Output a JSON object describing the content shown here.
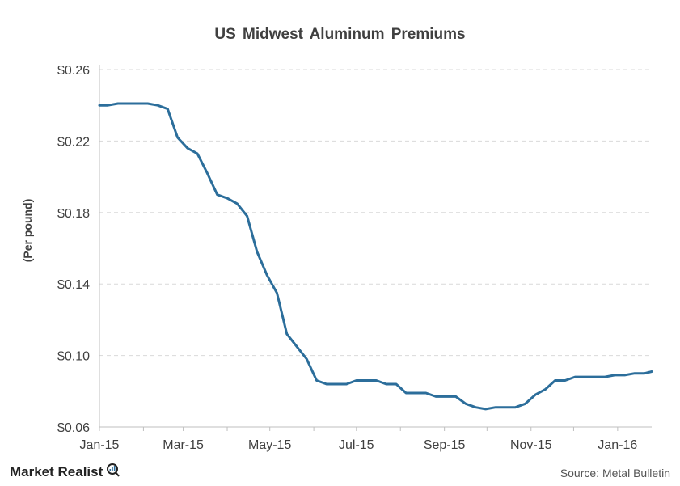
{
  "chart_data": {
    "type": "line",
    "title": "US Midwest Aluminum Premiums",
    "ylabel": "(Per pound)",
    "xlabel": "",
    "ylim": [
      0.06,
      0.26
    ],
    "yticks": [
      "$0.26",
      "$0.22",
      "$0.18",
      "$0.14",
      "$0.10",
      "$0.06"
    ],
    "ytick_values": [
      0.26,
      0.22,
      0.18,
      0.14,
      0.1,
      0.06
    ],
    "xticks": [
      "Jan-15",
      "Mar-15",
      "May-15",
      "Jul-15",
      "Sep-15",
      "Nov-15",
      "Jan-16"
    ],
    "xlim": [
      "2015-01-01",
      "2016-01-25"
    ],
    "grid": true,
    "series": [
      {
        "color": "#2c6e9b",
        "x": [
          "2015-01-01",
          "2015-01-07",
          "2015-01-14",
          "2015-01-21",
          "2015-01-28",
          "2015-02-04",
          "2015-02-11",
          "2015-02-18",
          "2015-02-25",
          "2015-03-04",
          "2015-03-11",
          "2015-03-18",
          "2015-03-25",
          "2015-04-01",
          "2015-04-08",
          "2015-04-15",
          "2015-04-22",
          "2015-04-29",
          "2015-05-06",
          "2015-05-13",
          "2015-05-20",
          "2015-05-27",
          "2015-06-03",
          "2015-06-10",
          "2015-06-17",
          "2015-06-24",
          "2015-07-01",
          "2015-07-08",
          "2015-07-15",
          "2015-07-22",
          "2015-07-29",
          "2015-08-05",
          "2015-08-12",
          "2015-08-19",
          "2015-08-26",
          "2015-09-02",
          "2015-09-09",
          "2015-09-16",
          "2015-09-23",
          "2015-09-30",
          "2015-10-07",
          "2015-10-14",
          "2015-10-21",
          "2015-10-28",
          "2015-11-04",
          "2015-11-11",
          "2015-11-18",
          "2015-11-25",
          "2015-12-02",
          "2015-12-09",
          "2015-12-16",
          "2015-12-23",
          "2015-12-30",
          "2016-01-06",
          "2016-01-13",
          "2016-01-20",
          "2016-01-25"
        ],
        "values": [
          0.24,
          0.24,
          0.241,
          0.241,
          0.241,
          0.241,
          0.24,
          0.238,
          0.222,
          0.216,
          0.213,
          0.202,
          0.19,
          0.188,
          0.185,
          0.178,
          0.158,
          0.145,
          0.135,
          0.112,
          0.105,
          0.098,
          0.086,
          0.084,
          0.084,
          0.084,
          0.086,
          0.086,
          0.086,
          0.084,
          0.084,
          0.079,
          0.079,
          0.079,
          0.077,
          0.077,
          0.077,
          0.073,
          0.071,
          0.07,
          0.071,
          0.071,
          0.071,
          0.073,
          0.078,
          0.081,
          0.086,
          0.086,
          0.088,
          0.088,
          0.088,
          0.088,
          0.089,
          0.089,
          0.09,
          0.09,
          0.091
        ]
      }
    ]
  },
  "footer": {
    "brand": "Market Realist",
    "source": "Source: Metal Bulletin"
  },
  "colors": {
    "line": "#2c6e9b",
    "grid": "#d9d9d9",
    "axis": "#bfbfbf",
    "text": "#404040"
  }
}
